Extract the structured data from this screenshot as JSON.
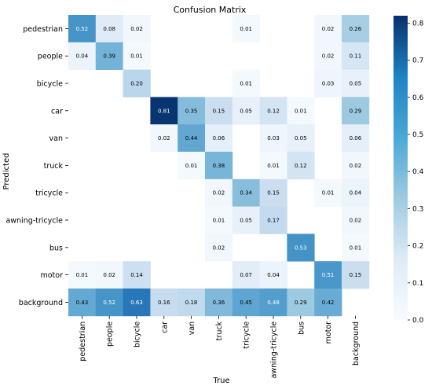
{
  "chart_data": {
    "type": "heatmap",
    "title": "Confusion Matrix",
    "xlabel": "True",
    "ylabel": "Predicted",
    "x_categories": [
      "pedestrian",
      "people",
      "bicycle",
      "car",
      "van",
      "truck",
      "tricycle",
      "awning-tricycle",
      "bus",
      "motor",
      "background"
    ],
    "y_categories": [
      "pedestrian",
      "people",
      "bicycle",
      "car",
      "van",
      "truck",
      "tricycle",
      "awning-tricycle",
      "bus",
      "motor",
      "background"
    ],
    "values": [
      [
        0.52,
        0.08,
        0.02,
        null,
        null,
        null,
        0.01,
        null,
        null,
        0.02,
        0.26
      ],
      [
        0.04,
        0.39,
        0.01,
        null,
        null,
        null,
        null,
        null,
        null,
        0.02,
        0.11
      ],
      [
        null,
        null,
        0.2,
        null,
        null,
        null,
        0.01,
        null,
        null,
        0.03,
        0.05
      ],
      [
        null,
        null,
        null,
        0.81,
        0.35,
        0.15,
        0.05,
        0.12,
        0.01,
        null,
        0.29
      ],
      [
        null,
        null,
        null,
        0.02,
        0.44,
        0.06,
        null,
        0.03,
        0.05,
        null,
        0.06
      ],
      [
        null,
        null,
        null,
        null,
        0.01,
        0.38,
        null,
        0.01,
        0.12,
        null,
        0.02
      ],
      [
        null,
        null,
        null,
        null,
        null,
        0.02,
        0.34,
        0.15,
        null,
        0.01,
        0.04
      ],
      [
        null,
        null,
        null,
        null,
        null,
        0.01,
        0.05,
        0.17,
        null,
        null,
        0.02
      ],
      [
        null,
        null,
        null,
        null,
        null,
        0.02,
        null,
        null,
        0.53,
        null,
        0.01
      ],
      [
        0.01,
        0.02,
        0.14,
        null,
        null,
        null,
        0.07,
        0.04,
        null,
        0.51,
        0.15
      ],
      [
        0.43,
        0.52,
        0.63,
        0.16,
        0.18,
        0.36,
        0.45,
        0.48,
        0.29,
        0.42,
        null
      ]
    ],
    "colorbar": {
      "range": [
        0.0,
        0.82
      ],
      "ticks": [
        "0.0",
        "0.1",
        "0.2",
        "0.3",
        "0.4",
        "0.5",
        "0.6",
        "0.7",
        "0.8"
      ],
      "colormap": "Blues"
    }
  }
}
